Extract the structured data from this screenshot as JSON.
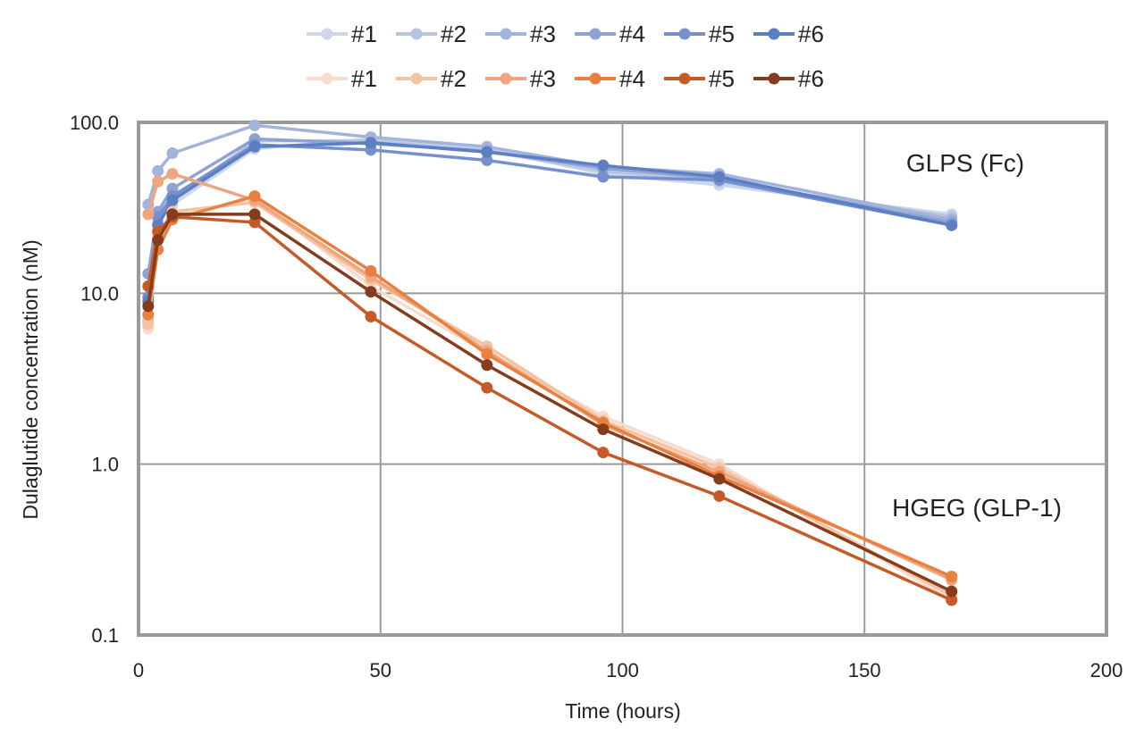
{
  "chart_data": {
    "type": "line",
    "title": "",
    "xlabel": "Time (hours)",
    "ylabel": "Dulaglutide concentration (nM)",
    "xlim": [
      0,
      200
    ],
    "ylim": [
      0.1,
      100
    ],
    "yscale": "log",
    "grid": true,
    "legend_position": "top-center",
    "x_ticks": [
      0,
      50,
      100,
      150,
      200
    ],
    "x_tick_labels": [
      "0",
      "50",
      "100",
      "150",
      "200"
    ],
    "y_ticks": [
      0.1,
      1,
      10,
      100
    ],
    "y_tick_labels": [
      "0.1",
      "1.0",
      "10.0",
      "100.0"
    ],
    "x": [
      2,
      4,
      7,
      24,
      48,
      72,
      96,
      120,
      168
    ],
    "annotations": [
      {
        "text": "GLPS (Fc)",
        "group": "GLPS"
      },
      {
        "text": "HGEG (GLP-1)",
        "group": "HGEG"
      }
    ],
    "series": [
      {
        "name": "#1",
        "group": "GLPS",
        "color": "#cdd6ea",
        "values": [
          7.0,
          27,
          33,
          70,
          80,
          70,
          50,
          43,
          29
        ]
      },
      {
        "name": "#2",
        "group": "GLPS",
        "color": "#b6c4e2",
        "values": [
          6.8,
          26,
          35,
          78,
          78,
          68,
          52,
          45,
          28
        ]
      },
      {
        "name": "#3",
        "group": "GLPS",
        "color": "#a2b3dc",
        "values": [
          33,
          52,
          66,
          96,
          82,
          72,
          55,
          50,
          27
        ]
      },
      {
        "name": "#4",
        "group": "GLPS",
        "color": "#8ea3d4",
        "values": [
          13,
          30,
          41,
          80,
          75,
          68,
          54,
          47,
          26
        ]
      },
      {
        "name": "#5",
        "group": "GLPS",
        "color": "#7590cc",
        "values": [
          9.5,
          28,
          37,
          74,
          69,
          60,
          48,
          46,
          25
        ]
      },
      {
        "name": "#6",
        "group": "GLPS",
        "color": "#5c7fc3",
        "values": [
          9.0,
          25,
          35,
          72,
          76,
          67,
          56,
          48,
          25
        ]
      },
      {
        "name": "#1",
        "group": "HGEG",
        "color": "#f8dccb",
        "values": [
          6.2,
          23,
          28,
          36,
          11,
          4.5,
          1.9,
          1.0,
          0.16
        ]
      },
      {
        "name": "#2",
        "group": "HGEG",
        "color": "#f5c2a2",
        "values": [
          6.6,
          22,
          30,
          34,
          12,
          4.9,
          1.8,
          0.95,
          0.17
        ]
      },
      {
        "name": "#3",
        "group": "HGEG",
        "color": "#efa57d",
        "values": [
          29,
          45,
          50,
          35,
          12.5,
          4.6,
          1.7,
          0.9,
          0.21
        ]
      },
      {
        "name": "#4",
        "group": "HGEG",
        "color": "#e9803f",
        "values": [
          7.5,
          18,
          27,
          37,
          13.5,
          4.4,
          1.75,
          0.85,
          0.22
        ]
      },
      {
        "name": "#5",
        "group": "HGEG",
        "color": "#c65a26",
        "values": [
          11,
          23,
          28,
          26,
          7.3,
          2.8,
          1.17,
          0.65,
          0.16
        ]
      },
      {
        "name": "#6",
        "group": "HGEG",
        "color": "#843c1c",
        "values": [
          8.4,
          20.5,
          29,
          29,
          10.2,
          3.8,
          1.6,
          0.82,
          0.18
        ]
      }
    ]
  }
}
